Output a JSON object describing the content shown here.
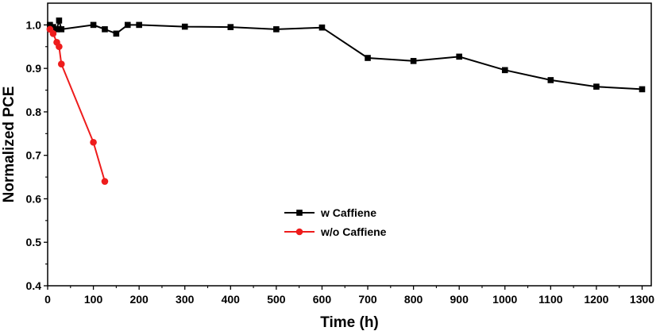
{
  "chart_data": {
    "type": "line",
    "xlabel": "Time (h)",
    "ylabel": "Normalized PCE",
    "xlim": [
      0,
      1320
    ],
    "ylim": [
      0.4,
      1.05
    ],
    "xticks": [
      0,
      100,
      200,
      300,
      400,
      500,
      600,
      700,
      800,
      900,
      1000,
      1100,
      1200,
      1300
    ],
    "yticks": [
      0.4,
      0.5,
      0.6,
      0.7,
      0.8,
      0.9,
      1.0
    ],
    "xtick_labels": [
      "0",
      "100",
      "200",
      "300",
      "400",
      "500",
      "600",
      "700",
      "800",
      "900",
      "1000",
      "1100",
      "1200",
      "1300"
    ],
    "ytick_labels": [
      "0.4",
      "0.5",
      "0.6",
      "0.7",
      "0.8",
      "0.9",
      "1.0"
    ],
    "grid": false,
    "legend_position": "center",
    "series": [
      {
        "name": "w Caffiene",
        "color": "#000000",
        "marker": "square",
        "points": [
          [
            5,
            1.0
          ],
          [
            12,
            0.995
          ],
          [
            20,
            0.99
          ],
          [
            25,
            1.01
          ],
          [
            30,
            0.99
          ],
          [
            100,
            1.0
          ],
          [
            125,
            0.99
          ],
          [
            150,
            0.98
          ],
          [
            175,
            1.0
          ],
          [
            200,
            1.0
          ],
          [
            300,
            0.996
          ],
          [
            400,
            0.995
          ],
          [
            500,
            0.99
          ],
          [
            600,
            0.994
          ],
          [
            700,
            0.924
          ],
          [
            800,
            0.917
          ],
          [
            900,
            0.927
          ],
          [
            1000,
            0.896
          ],
          [
            1100,
            0.873
          ],
          [
            1200,
            0.858
          ],
          [
            1300,
            0.852
          ]
        ]
      },
      {
        "name": "w/o Caffiene",
        "color": "#ee1c1c",
        "marker": "circle",
        "points": [
          [
            5,
            0.99
          ],
          [
            12,
            0.98
          ],
          [
            20,
            0.96
          ],
          [
            25,
            0.95
          ],
          [
            30,
            0.91
          ],
          [
            100,
            0.73
          ],
          [
            125,
            0.64
          ]
        ]
      }
    ]
  }
}
